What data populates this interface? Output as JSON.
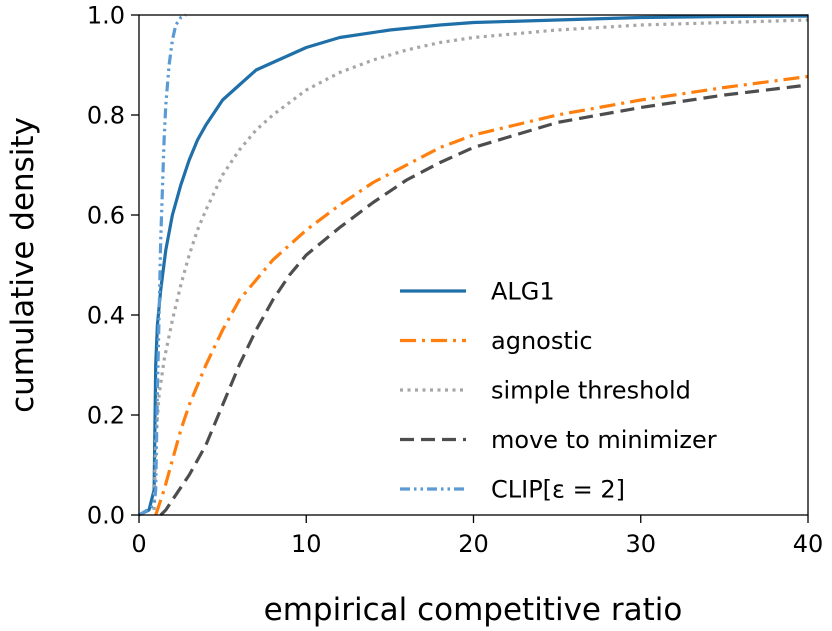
{
  "chart_data": {
    "type": "line",
    "title": "",
    "xlabel": "empirical competitive ratio",
    "ylabel": "cumulative density",
    "xlim": [
      0,
      40
    ],
    "ylim": [
      0,
      1
    ],
    "xticks": [
      0,
      10,
      20,
      30,
      40
    ],
    "xtick_labels": [
      "0",
      "10",
      "20",
      "30",
      "40"
    ],
    "yticks": [
      0,
      0.2,
      0.4,
      0.6,
      0.8,
      1.0
    ],
    "ytick_labels": [
      "0.0",
      "0.2",
      "0.4",
      "0.6",
      "0.8",
      "1.0"
    ],
    "grid": false,
    "legend_position": "lower-right",
    "series": [
      {
        "name": "ALG1",
        "color": "#1f6fa8",
        "style": "solid",
        "x": [
          0,
          0.6,
          0.9,
          1.0,
          1.1,
          1.3,
          1.6,
          2.0,
          2.5,
          3.0,
          3.5,
          4.0,
          5.0,
          6.0,
          7.0,
          8.0,
          10.0,
          12.0,
          15.0,
          18.0,
          20.0,
          25.0,
          30.0,
          35.0,
          40.0
        ],
        "y": [
          0,
          0.01,
          0.05,
          0.3,
          0.38,
          0.45,
          0.53,
          0.6,
          0.66,
          0.71,
          0.75,
          0.78,
          0.83,
          0.86,
          0.89,
          0.905,
          0.935,
          0.955,
          0.97,
          0.98,
          0.985,
          0.99,
          0.995,
          0.997,
          0.998
        ]
      },
      {
        "name": "agnostic",
        "color": "#ff7f0e",
        "style": "dashdot",
        "x": [
          1.0,
          1.5,
          2.0,
          2.5,
          3.0,
          4.0,
          5.0,
          6.0,
          8.0,
          10.0,
          12.0,
          14.0,
          16.0,
          18.0,
          20.0,
          25.0,
          30.0,
          35.0,
          40.0
        ],
        "y": [
          0,
          0.05,
          0.11,
          0.17,
          0.22,
          0.3,
          0.37,
          0.43,
          0.51,
          0.57,
          0.62,
          0.665,
          0.7,
          0.735,
          0.76,
          0.8,
          0.83,
          0.855,
          0.877
        ]
      },
      {
        "name": "simple threshold",
        "color": "#a6a6a6",
        "style": "dotted",
        "x": [
          0.9,
          1.0,
          1.2,
          1.5,
          2.0,
          2.5,
          3.0,
          3.5,
          4.0,
          5.0,
          6.0,
          7.0,
          8.0,
          10.0,
          12.0,
          14.0,
          16.0,
          18.0,
          20.0,
          25.0,
          30.0,
          35.0,
          40.0
        ],
        "y": [
          0.01,
          0.15,
          0.24,
          0.31,
          0.39,
          0.46,
          0.52,
          0.57,
          0.61,
          0.68,
          0.73,
          0.77,
          0.8,
          0.85,
          0.885,
          0.91,
          0.93,
          0.945,
          0.955,
          0.97,
          0.98,
          0.985,
          0.99
        ]
      },
      {
        "name": "move to minimizer",
        "color": "#4d4d4d",
        "style": "dashed",
        "x": [
          1.3,
          1.6,
          2.0,
          3.0,
          4.0,
          5.0,
          6.0,
          7.0,
          8.0,
          9.0,
          10.0,
          12.0,
          14.0,
          16.0,
          18.0,
          20.0,
          25.0,
          30.0,
          35.0,
          40.0
        ],
        "y": [
          0,
          0.01,
          0.03,
          0.08,
          0.14,
          0.22,
          0.3,
          0.37,
          0.43,
          0.48,
          0.52,
          0.575,
          0.625,
          0.67,
          0.705,
          0.735,
          0.785,
          0.815,
          0.84,
          0.86
        ]
      },
      {
        "name": "CLIP[ε = 2]",
        "color": "#5b9bd5",
        "style": "dashdotdot",
        "x": [
          0,
          0.5,
          0.9,
          1.0,
          1.1,
          1.2,
          1.3,
          1.4,
          1.5,
          1.6,
          1.8,
          2.0,
          2.2,
          2.5,
          2.8
        ],
        "y": [
          0,
          0.01,
          0.02,
          0.05,
          0.25,
          0.4,
          0.55,
          0.65,
          0.75,
          0.82,
          0.9,
          0.95,
          0.98,
          0.995,
          1.0
        ]
      }
    ]
  }
}
